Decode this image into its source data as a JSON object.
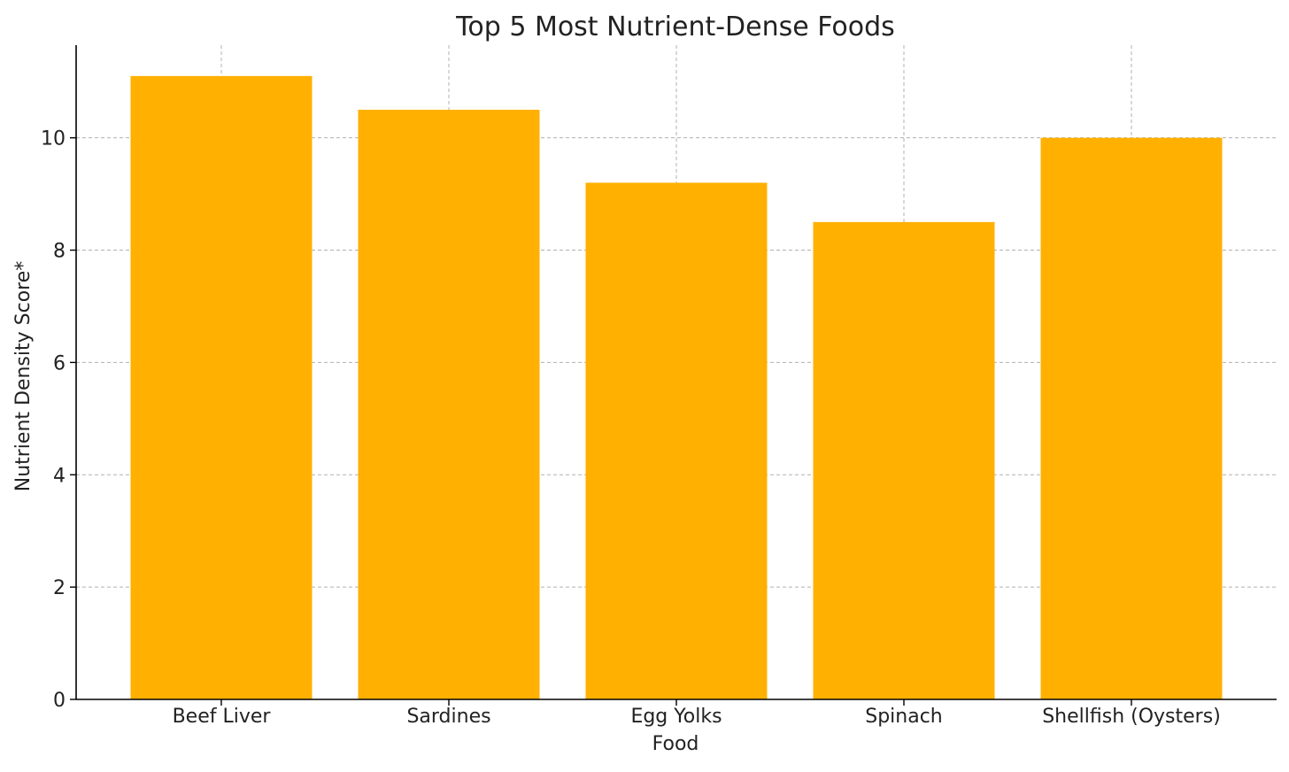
{
  "chart_data": {
    "type": "bar",
    "title": "Top 5 Most Nutrient-Dense Foods",
    "xlabel": "Food",
    "ylabel": "Nutrient Density Score*",
    "categories": [
      "Beef Liver",
      "Sardines",
      "Egg Yolks",
      "Spinach",
      "Shellfish (Oysters)"
    ],
    "values": [
      11.1,
      10.5,
      9.2,
      8.5,
      10.0
    ],
    "ylim": [
      0,
      11.65
    ],
    "yticks": [
      0,
      2,
      4,
      6,
      8,
      10
    ],
    "grid": true,
    "bar_color": "#FFB000"
  }
}
